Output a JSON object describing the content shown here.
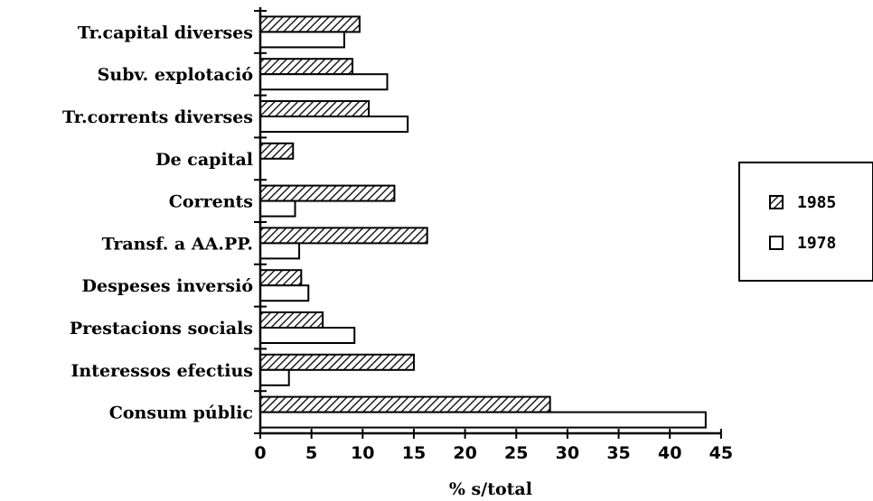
{
  "chart_data": {
    "type": "bar",
    "orientation": "horizontal",
    "categories": [
      "Tr.capital diverses",
      "Subv. explotació",
      "Tr.corrents diverses",
      "De capital",
      "Corrents",
      "Transf. a AA.PP.",
      "Despeses inversió",
      "Prestacions socials",
      "Interessos efectius",
      "Consum públic"
    ],
    "series": [
      {
        "name": "1985",
        "pattern": "hatched",
        "values": [
          9.7,
          9.0,
          10.6,
          3.2,
          13.1,
          16.3,
          4.0,
          6.1,
          15.0,
          28.3
        ]
      },
      {
        "name": "1978",
        "pattern": "open",
        "values": [
          8.2,
          12.4,
          14.4,
          0,
          3.4,
          3.8,
          4.7,
          9.2,
          2.8,
          43.5
        ]
      }
    ],
    "xlabel": "% s/total",
    "xlim": [
      0,
      45
    ],
    "xticks": [
      0,
      5,
      10,
      15,
      20,
      25,
      30,
      35,
      40,
      45
    ],
    "grid": false,
    "legend_position": "right",
    "colors": {
      "bar_stroke": "#000000",
      "bar_fill": "#ffffff",
      "hatch": "#000000"
    }
  }
}
